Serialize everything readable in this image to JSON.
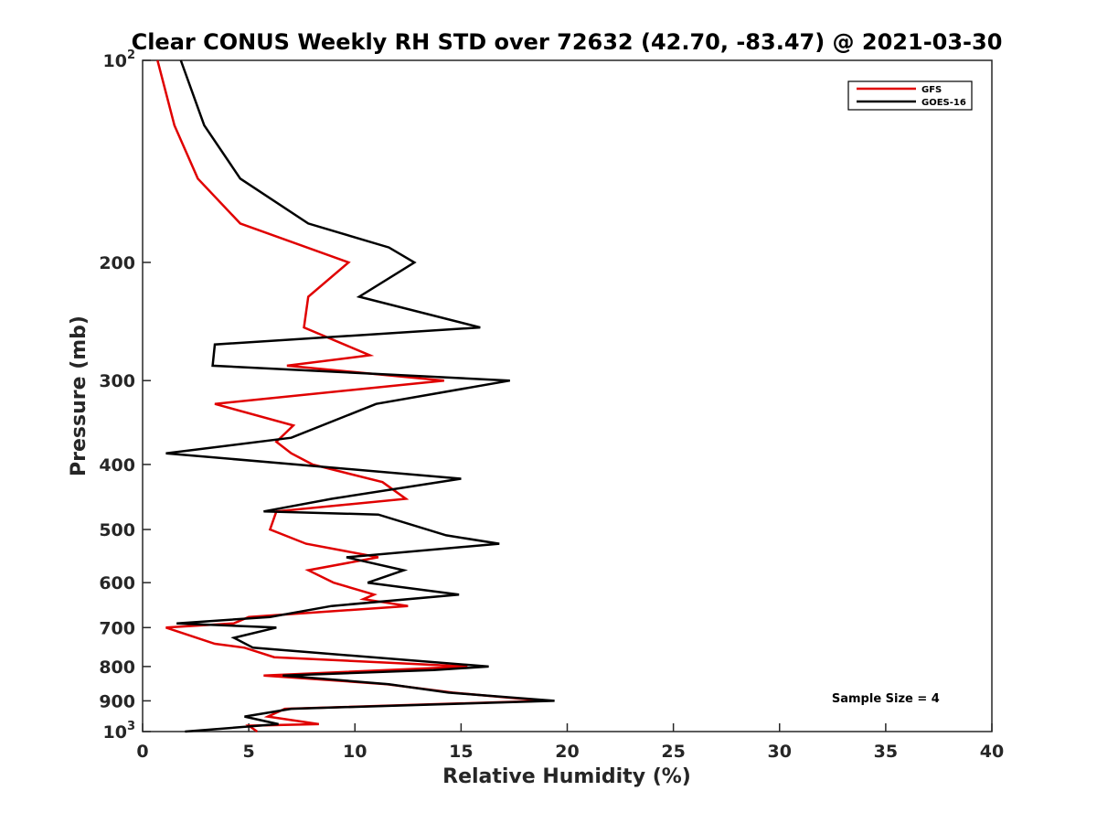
{
  "chart_data": {
    "type": "line",
    "title": "Clear CONUS Weekly RH STD over 72632 (42.70, -83.47) @ 2021-03-30",
    "xlabel": "Relative Humidity (%)",
    "ylabel": "Pressure (mb)",
    "xlim": [
      0,
      40
    ],
    "ylim": [
      100,
      1000
    ],
    "y_scale": "log",
    "y_reversed": true,
    "x_ticks": [
      0,
      5,
      10,
      15,
      20,
      25,
      30,
      35,
      40
    ],
    "x_tick_labels": [
      "0",
      "5",
      "10",
      "15",
      "20",
      "25",
      "30",
      "35",
      "40"
    ],
    "y_ticks": [
      100,
      200,
      300,
      400,
      500,
      600,
      700,
      800,
      900,
      1000
    ],
    "y_tick_labels": [
      {
        "base": "10",
        "sup": "2"
      },
      {
        "base": "200",
        "sup": ""
      },
      {
        "base": "300",
        "sup": ""
      },
      {
        "base": "400",
        "sup": ""
      },
      {
        "base": "500",
        "sup": ""
      },
      {
        "base": "600",
        "sup": ""
      },
      {
        "base": "700",
        "sup": ""
      },
      {
        "base": "800",
        "sup": ""
      },
      {
        "base": "900",
        "sup": ""
      },
      {
        "base": "10",
        "sup": "3"
      }
    ],
    "grid": false,
    "legend_position": "top-right",
    "series": [
      {
        "name": "GFS",
        "color": "#e00000",
        "points": [
          [
            0.7,
            100
          ],
          [
            1.5,
            125
          ],
          [
            2.6,
            150
          ],
          [
            4.6,
            175
          ],
          [
            9.7,
            200
          ],
          [
            7.8,
            225
          ],
          [
            7.6,
            250
          ],
          [
            10.7,
            275
          ],
          [
            6.8,
            285
          ],
          [
            14.2,
            300
          ],
          [
            3.4,
            325
          ],
          [
            7.1,
            350
          ],
          [
            6.3,
            370
          ],
          [
            7.0,
            385
          ],
          [
            8.0,
            400
          ],
          [
            11.3,
            425
          ],
          [
            12.4,
            450
          ],
          [
            6.3,
            470
          ],
          [
            6.0,
            500
          ],
          [
            7.7,
            525
          ],
          [
            11.1,
            550
          ],
          [
            7.8,
            575
          ],
          [
            9.0,
            600
          ],
          [
            10.9,
            625
          ],
          [
            10.4,
            635
          ],
          [
            12.5,
            650
          ],
          [
            5.0,
            675
          ],
          [
            4.3,
            690
          ],
          [
            1.1,
            700
          ],
          [
            3.4,
            740
          ],
          [
            4.8,
            750
          ],
          [
            6.2,
            775
          ],
          [
            15.3,
            800
          ],
          [
            5.7,
            825
          ],
          [
            11.5,
            850
          ],
          [
            14.6,
            875
          ],
          [
            18.9,
            900
          ],
          [
            6.7,
            925
          ],
          [
            5.9,
            950
          ],
          [
            8.3,
            975
          ],
          [
            5.0,
            980
          ],
          [
            5.4,
            1000
          ]
        ]
      },
      {
        "name": "GOES-16",
        "color": "#000000",
        "points": [
          [
            1.8,
            100
          ],
          [
            2.9,
            125
          ],
          [
            4.6,
            150
          ],
          [
            7.8,
            175
          ],
          [
            11.6,
            190
          ],
          [
            12.8,
            200
          ],
          [
            10.2,
            225
          ],
          [
            15.9,
            250
          ],
          [
            3.4,
            265
          ],
          [
            3.3,
            285
          ],
          [
            17.3,
            300
          ],
          [
            11.0,
            325
          ],
          [
            7.0,
            365
          ],
          [
            1.1,
            385
          ],
          [
            15.0,
            420
          ],
          [
            8.9,
            450
          ],
          [
            5.7,
            470
          ],
          [
            11.1,
            475
          ],
          [
            14.3,
            510
          ],
          [
            16.8,
            525
          ],
          [
            9.6,
            550
          ],
          [
            12.3,
            575
          ],
          [
            10.6,
            600
          ],
          [
            14.9,
            625
          ],
          [
            8.9,
            650
          ],
          [
            6.0,
            675
          ],
          [
            1.6,
            690
          ],
          [
            6.3,
            700
          ],
          [
            4.3,
            725
          ],
          [
            5.2,
            750
          ],
          [
            16.3,
            800
          ],
          [
            13.7,
            810
          ],
          [
            6.6,
            825
          ],
          [
            11.6,
            850
          ],
          [
            14.4,
            875
          ],
          [
            19.4,
            900
          ],
          [
            7.0,
            925
          ],
          [
            4.8,
            950
          ],
          [
            6.4,
            975
          ],
          [
            2.0,
            1000
          ]
        ]
      }
    ],
    "annotations": [
      {
        "text": "Sample Size = 4",
        "x": 35,
        "y": 905
      }
    ]
  }
}
